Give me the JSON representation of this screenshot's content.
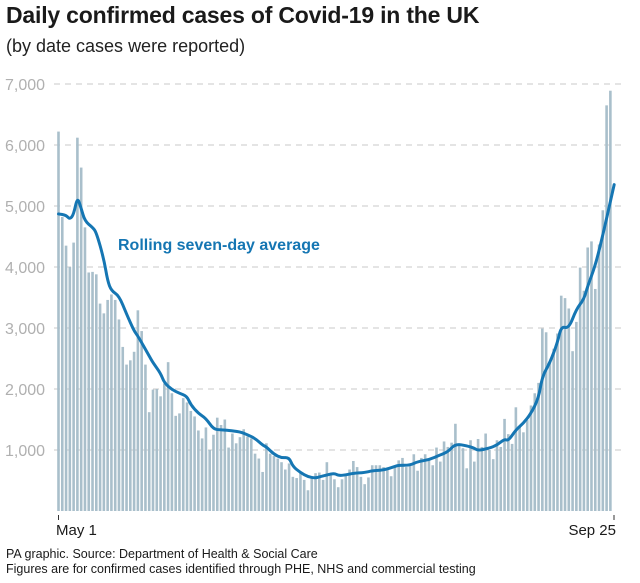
{
  "title": "Daily confirmed cases of Covid-19 in the UK",
  "subtitle": "(by date cases were reported)",
  "footer": {
    "source": "PA graphic. Source: Department of Health & Social Care",
    "note": "Figures are for confirmed cases identified through PHE, NHS and commercial testing"
  },
  "chart_data": {
    "type": "bar",
    "ylim": [
      0,
      7000
    ],
    "yticks": [
      "1,000",
      "2,000",
      "3,000",
      "4,000",
      "5,000",
      "6,000",
      "7,000"
    ],
    "ytick_values": [
      1000,
      2000,
      3000,
      4000,
      5000,
      6000,
      7000
    ],
    "grid": true,
    "x_start": "May 1",
    "x_end": "Sep 25",
    "xticks": [
      "May 1",
      "Sep 25"
    ],
    "colors": {
      "bars": "#a9bfcb",
      "line": "#1576b3",
      "grid": "#c8c8c8"
    },
    "daily_cases": [
      6220,
      4820,
      4350,
      4000,
      4400,
      6120,
      5630,
      4650,
      3910,
      3920,
      3880,
      3400,
      3240,
      3460,
      3550,
      3460,
      3140,
      2690,
      2400,
      2470,
      2610,
      3290,
      2950,
      2400,
      1620,
      1990,
      2000,
      1880,
      2090,
      2440,
      1930,
      1560,
      1600,
      1850,
      1780,
      1640,
      1550,
      1320,
      1190,
      1370,
      1000,
      1250,
      1530,
      1410,
      1500,
      1040,
      1270,
      1110,
      1210,
      1340,
      1220,
      1190,
      940,
      860,
      640,
      1110,
      940,
      900,
      860,
      800,
      680,
      780,
      560,
      540,
      620,
      510,
      340,
      540,
      620,
      630,
      510,
      800,
      610,
      520,
      390,
      520,
      610,
      680,
      820,
      720,
      560,
      440,
      550,
      750,
      750,
      750,
      720,
      680,
      570,
      720,
      830,
      870,
      720,
      750,
      930,
      660,
      870,
      930,
      840,
      750,
      1040,
      810,
      1140,
      1050,
      1120,
      1430,
      1080,
      1030,
      700,
      1160,
      810,
      1180,
      1050,
      1270,
      1000,
      850,
      1160,
      1050,
      1510,
      1260,
      1100,
      1700,
      1380,
      1290,
      1490,
      1730,
      1930,
      2100,
      2990,
      2930,
      2440,
      2660,
      2910,
      3530,
      3490,
      3320,
      2620,
      3100,
      3990,
      3610,
      4320,
      4420,
      3640,
      4370,
      4930,
      6650,
      6890
    ],
    "rolling_average": {
      "label": "Rolling seven-day average",
      "points": [
        [
          "May 1",
          4870
        ],
        [
          "May 3",
          4850
        ],
        [
          "May 4",
          4780
        ],
        [
          "May 5",
          4860
        ],
        [
          "May 6",
          5150
        ],
        [
          "May 7",
          4960
        ],
        [
          "May 8",
          4750
        ],
        [
          "May 10",
          4650
        ],
        [
          "May 11",
          4570
        ],
        [
          "May 13",
          4130
        ],
        [
          "May 14",
          3770
        ],
        [
          "May 15",
          3610
        ],
        [
          "May 17",
          3530
        ],
        [
          "May 19",
          3230
        ],
        [
          "May 21",
          2950
        ],
        [
          "May 22",
          2870
        ],
        [
          "May 25",
          2540
        ],
        [
          "May 26",
          2430
        ],
        [
          "May 28",
          2260
        ],
        [
          "May 29",
          2100
        ],
        [
          "May 31",
          1990
        ],
        [
          "Jun 2",
          1930
        ],
        [
          "Jun 4",
          1880
        ],
        [
          "Jun 5",
          1740
        ],
        [
          "Jun 7",
          1600
        ],
        [
          "Jun 9",
          1520
        ],
        [
          "Jun 11",
          1340
        ],
        [
          "Jun 13",
          1330
        ],
        [
          "Jun 15",
          1320
        ],
        [
          "Jun 18",
          1300
        ],
        [
          "Jun 20",
          1250
        ],
        [
          "Jun 22",
          1190
        ],
        [
          "Jun 24",
          1080
        ],
        [
          "Jun 25",
          1050
        ],
        [
          "Jun 27",
          930
        ],
        [
          "Jun 29",
          870
        ],
        [
          "Jul 1",
          880
        ],
        [
          "Jul 2",
          730
        ],
        [
          "Jul 4",
          630
        ],
        [
          "Jul 6",
          560
        ],
        [
          "Jul 8",
          540
        ],
        [
          "Jul 9",
          560
        ],
        [
          "Jul 11",
          590
        ],
        [
          "Jul 13",
          620
        ],
        [
          "Jul 14",
          580
        ],
        [
          "Jul 16",
          590
        ],
        [
          "Jul 18",
          620
        ],
        [
          "Jul 21",
          630
        ],
        [
          "Jul 23",
          660
        ],
        [
          "Jul 26",
          670
        ],
        [
          "Jul 29",
          730
        ],
        [
          "Jul 30",
          750
        ],
        [
          "Aug 2",
          750
        ],
        [
          "Aug 4",
          810
        ],
        [
          "Aug 7",
          840
        ],
        [
          "Aug 10",
          920
        ],
        [
          "Aug 12",
          970
        ],
        [
          "Aug 14",
          1100
        ],
        [
          "Aug 17",
          1070
        ],
        [
          "Aug 19",
          1030
        ],
        [
          "Aug 20",
          990
        ],
        [
          "Aug 23",
          1030
        ],
        [
          "Aug 25",
          1080
        ],
        [
          "Aug 27",
          1180
        ],
        [
          "Aug 28",
          1150
        ],
        [
          "Aug 30",
          1330
        ],
        [
          "Sep 1",
          1440
        ],
        [
          "Sep 3",
          1600
        ],
        [
          "Sep 5",
          1850
        ],
        [
          "Sep 6",
          2210
        ],
        [
          "Sep 8",
          2430
        ],
        [
          "Sep 10",
          2760
        ],
        [
          "Sep 11",
          3030
        ],
        [
          "Sep 13",
          2990
        ],
        [
          "Sep 15",
          3310
        ],
        [
          "Sep 17",
          3470
        ],
        [
          "Sep 18",
          3690
        ],
        [
          "Sep 20",
          4020
        ],
        [
          "Sep 22",
          4520
        ],
        [
          "Sep 25",
          5350
        ]
      ]
    }
  }
}
